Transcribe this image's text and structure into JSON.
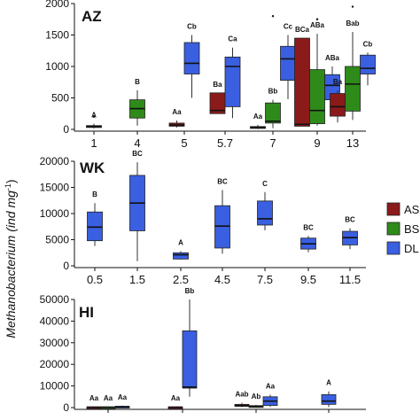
{
  "y_axis_label": "Methanobacterium (ind mg",
  "y_axis_label_sup": "-1",
  "y_axis_label_close": ")",
  "legend": [
    {
      "label": "AS",
      "color": "#8b1a1a"
    },
    {
      "label": "BS",
      "color": "#2e8b1a"
    },
    {
      "label": "DL",
      "color": "#3a5fe0"
    }
  ],
  "colors": {
    "AS": "#8b1a1a",
    "BS": "#2e8b1a",
    "DL": "#3a5fe0"
  },
  "chart_data": [
    {
      "type": "box",
      "title": "AZ",
      "categories": [
        "1",
        "4",
        "5",
        "5.7",
        "7",
        "9",
        "13"
      ],
      "ylim": [
        0,
        2000
      ],
      "yticks": [
        0,
        500,
        1000,
        1500,
        2000
      ],
      "boxes": [
        {
          "category": "1",
          "series": "BS",
          "min": 15,
          "q1": 30,
          "median": 45,
          "q3": 60,
          "max": 90,
          "label": "A",
          "outlier": 200
        },
        {
          "category": "4",
          "series": "BS",
          "min": 60,
          "q1": 180,
          "median": 330,
          "q3": 470,
          "max": 620,
          "label": "B"
        },
        {
          "category": "5",
          "series": "AS",
          "min": 30,
          "q1": 50,
          "median": 70,
          "q3": 100,
          "max": 140,
          "label": "Aa"
        },
        {
          "category": "5",
          "series": "DL",
          "min": 500,
          "q1": 880,
          "median": 1050,
          "q3": 1380,
          "max": 1500,
          "label": "Cb"
        },
        {
          "category": "5.7",
          "series": "AS",
          "min": 250,
          "q1": 250,
          "median": 300,
          "q3": 580,
          "max": 580,
          "label": "Ba"
        },
        {
          "category": "5.7",
          "series": "DL",
          "min": 180,
          "q1": 360,
          "median": 1000,
          "q3": 1150,
          "max": 1300,
          "label": "Ca"
        },
        {
          "category": "7",
          "series": "AS",
          "min": 5,
          "q1": 15,
          "median": 30,
          "q3": 45,
          "max": 70,
          "label": "Aa"
        },
        {
          "category": "7",
          "series": "BS",
          "min": 20,
          "q1": 100,
          "median": 130,
          "q3": 420,
          "max": 470,
          "label": "Bb",
          "outlier": 1800
        },
        {
          "category": "7",
          "series": "DL",
          "min": 480,
          "q1": 780,
          "median": 1120,
          "q3": 1320,
          "max": 1500,
          "label": "Cc"
        },
        {
          "category": "9",
          "series": "AS",
          "min": 50,
          "q1": 50,
          "median": 80,
          "q3": 1450,
          "max": 1450,
          "label": "BCa"
        },
        {
          "category": "9",
          "series": "BS",
          "min": 60,
          "q1": 90,
          "median": 300,
          "q3": 950,
          "max": 1520,
          "label": "ABa",
          "outlier": 1750
        },
        {
          "category": "9",
          "series": "DL",
          "min": 350,
          "q1": 470,
          "median": 700,
          "q3": 870,
          "max": 1000,
          "label": "ABa"
        },
        {
          "category": "13",
          "series": "AS",
          "min": 110,
          "q1": 210,
          "median": 360,
          "q3": 570,
          "max": 620,
          "label": "Ba"
        },
        {
          "category": "13",
          "series": "BS",
          "min": 150,
          "q1": 290,
          "median": 720,
          "q3": 1000,
          "max": 1550,
          "label": "Bab",
          "outlier": 1950
        },
        {
          "category": "13",
          "series": "DL",
          "min": 700,
          "q1": 880,
          "median": 970,
          "q3": 1180,
          "max": 1220,
          "label": "Cb"
        }
      ]
    },
    {
      "type": "box",
      "title": "WK",
      "categories": [
        "0.5",
        "1.5",
        "2.5",
        "4.5",
        "7.5",
        "9.5",
        "11.5"
      ],
      "ylim": [
        0,
        20000
      ],
      "yticks": [
        0,
        5000,
        10000,
        15000,
        20000
      ],
      "boxes": [
        {
          "category": "0.5",
          "series": "DL",
          "min": 3800,
          "q1": 4800,
          "median": 7400,
          "q3": 10300,
          "max": 12000,
          "label": "B"
        },
        {
          "category": "1.5",
          "series": "DL",
          "min": 900,
          "q1": 6700,
          "median": 12000,
          "q3": 17300,
          "max": 19800,
          "label": "BC"
        },
        {
          "category": "2.5",
          "series": "DL",
          "min": 1200,
          "q1": 1300,
          "median": 2100,
          "q3": 2500,
          "max": 2800,
          "label": "A"
        },
        {
          "category": "4.5",
          "series": "DL",
          "min": 2300,
          "q1": 3400,
          "median": 7600,
          "q3": 11500,
          "max": 14500,
          "label": "BC"
        },
        {
          "category": "7.5",
          "series": "DL",
          "min": 6800,
          "q1": 7800,
          "median": 9000,
          "q3": 12400,
          "max": 14100,
          "label": "C"
        },
        {
          "category": "9.5",
          "series": "DL",
          "min": 2600,
          "q1": 3200,
          "median": 4200,
          "q3": 5300,
          "max": 5700,
          "label": "BC"
        },
        {
          "category": "11.5",
          "series": "DL",
          "min": 3200,
          "q1": 4000,
          "median": 5400,
          "q3": 6600,
          "max": 7200,
          "label": "BC"
        }
      ]
    },
    {
      "type": "box",
      "title": "HI",
      "categories": [
        "",
        "",
        "",
        ""
      ],
      "ylim": [
        0,
        50000
      ],
      "yticks": [
        0,
        10000,
        20000,
        30000,
        40000,
        50000
      ],
      "boxes": [
        {
          "group": 0,
          "series": "AS",
          "min": 50,
          "q1": 100,
          "median": 200,
          "q3": 300,
          "max": 400,
          "label": "Aa"
        },
        {
          "group": 0,
          "series": "BS",
          "min": 50,
          "q1": 100,
          "median": 200,
          "q3": 300,
          "max": 400,
          "label": "Aa"
        },
        {
          "group": 0,
          "series": "DL",
          "min": 100,
          "q1": 250,
          "median": 400,
          "q3": 600,
          "max": 900,
          "label": "Aa"
        },
        {
          "group": 1,
          "series": "AS",
          "min": 50,
          "q1": 100,
          "median": 200,
          "q3": 300,
          "max": 400,
          "label": "Aa"
        },
        {
          "group": 1,
          "series": "DL",
          "min": 5000,
          "q1": 9000,
          "median": 9500,
          "q3": 35500,
          "max": 50000,
          "label": "Bb"
        },
        {
          "group": 2,
          "series": "AS",
          "min": 200,
          "q1": 600,
          "median": 900,
          "q3": 1500,
          "max": 2200,
          "label": "Aab"
        },
        {
          "group": 2,
          "series": "BS",
          "min": 100,
          "q1": 300,
          "median": 600,
          "q3": 900,
          "max": 1200,
          "label": "Ab"
        },
        {
          "group": 2,
          "series": "DL",
          "min": 300,
          "q1": 1000,
          "median": 3000,
          "q3": 5000,
          "max": 6000,
          "label": "Aa"
        },
        {
          "group": 3,
          "series": "DL",
          "min": 200,
          "q1": 1500,
          "median": 3000,
          "q3": 6000,
          "max": 7500,
          "label": "A"
        }
      ]
    }
  ]
}
